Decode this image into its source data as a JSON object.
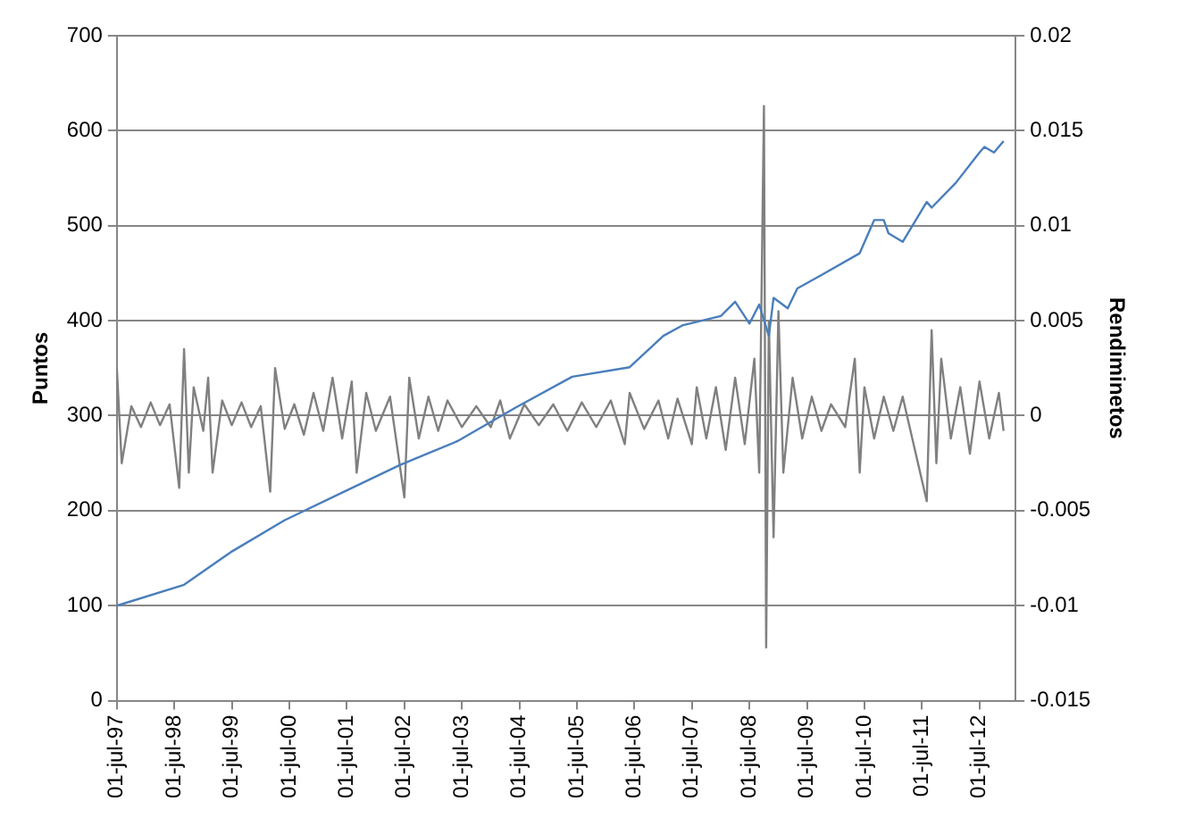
{
  "chart_data": {
    "type": "line",
    "ylabel": "Puntos",
    "y2label": "Rendiminetos",
    "grid": "y",
    "xlim": [
      "1997-07-01",
      "2013-02-15"
    ],
    "xticks": [
      {
        "value": "1997-07-01",
        "label": "01-jul-97"
      },
      {
        "value": "1998-07-01",
        "label": "01-jul-98"
      },
      {
        "value": "1999-07-01",
        "label": "01-jul-99"
      },
      {
        "value": "2000-07-01",
        "label": "01-jul-00"
      },
      {
        "value": "2001-07-01",
        "label": "01-jul-01"
      },
      {
        "value": "2002-07-01",
        "label": "01-jul-02"
      },
      {
        "value": "2003-07-01",
        "label": "01-jul-03"
      },
      {
        "value": "2004-07-01",
        "label": "01-jul-04"
      },
      {
        "value": "2005-07-01",
        "label": "01-jul-05"
      },
      {
        "value": "2006-07-01",
        "label": "01-jul-06"
      },
      {
        "value": "2007-07-01",
        "label": "01-jul-07"
      },
      {
        "value": "2008-07-01",
        "label": "01-jul-08"
      },
      {
        "value": "2009-07-01",
        "label": "01-jul-09"
      },
      {
        "value": "2010-07-01",
        "label": "01-jul-10"
      },
      {
        "value": "2011-07-01",
        "label": "01-jul-11"
      },
      {
        "value": "2012-07-01",
        "label": "01-jul-12"
      }
    ],
    "ylim": [
      0,
      700
    ],
    "yticks": [
      0,
      100,
      200,
      300,
      400,
      500,
      600,
      700
    ],
    "y2lim": [
      -0.015,
      0.02
    ],
    "y2ticks": [
      -0.015,
      -0.01,
      -0.005,
      0,
      0.005,
      0.01,
      0.015,
      0.02
    ],
    "series": [
      {
        "color": "#808080",
        "axis": "y2",
        "x": [
          "1997-07",
          "1997-08",
          "1997-10",
          "1997-12",
          "1998-02",
          "1998-04",
          "1998-06",
          "1998-08",
          "1998-09",
          "1998-10",
          "1998-11",
          "1999-01",
          "1999-02",
          "1999-03",
          "1999-05",
          "1999-07",
          "1999-09",
          "1999-11",
          "2000-01",
          "2000-03",
          "2000-04",
          "2000-06",
          "2000-08",
          "2000-10",
          "2000-12",
          "2001-02",
          "2001-04",
          "2001-06",
          "2001-08",
          "2001-09",
          "2001-11",
          "2002-01",
          "2002-04",
          "2002-07",
          "2002-08",
          "2002-10",
          "2002-12",
          "2003-02",
          "2003-04",
          "2003-07",
          "2003-10",
          "2004-01",
          "2004-03",
          "2004-05",
          "2004-08",
          "2004-11",
          "2005-02",
          "2005-05",
          "2005-08",
          "2005-11",
          "2006-02",
          "2006-05",
          "2006-06",
          "2006-09",
          "2006-12",
          "2007-02",
          "2007-04",
          "2007-07",
          "2007-08",
          "2007-10",
          "2007-12",
          "2008-02",
          "2008-04",
          "2008-06",
          "2008-08",
          "2008-09",
          "2008-10",
          "2008-10-15",
          "2008-11",
          "2008-12",
          "2009-01",
          "2009-02",
          "2009-04",
          "2009-06",
          "2009-08",
          "2009-10",
          "2009-12",
          "2010-03",
          "2010-05",
          "2010-06",
          "2010-07",
          "2010-09",
          "2010-11",
          "2011-01",
          "2011-03",
          "2011-05",
          "2011-08",
          "2011-09",
          "2011-10",
          "2011-11",
          "2012-01",
          "2012-03",
          "2012-05",
          "2012-07",
          "2012-09",
          "2012-11",
          "2012-12"
        ],
        "values": [
          0.0025,
          -0.0025,
          0.0005,
          -0.0006,
          0.0007,
          -0.0005,
          0.0006,
          -0.0038,
          0.0035,
          -0.003,
          0.0015,
          -0.0008,
          0.002,
          -0.003,
          0.0008,
          -0.0005,
          0.0007,
          -0.0006,
          0.0005,
          -0.004,
          0.0025,
          -0.0007,
          0.0006,
          -0.001,
          0.0012,
          -0.0008,
          0.002,
          -0.0012,
          0.0018,
          -0.003,
          0.0012,
          -0.0008,
          0.001,
          -0.0043,
          0.002,
          -0.0012,
          0.001,
          -0.0008,
          0.0008,
          -0.0006,
          0.0005,
          -0.0006,
          0.0008,
          -0.0012,
          0.0006,
          -0.0005,
          0.0006,
          -0.0008,
          0.0007,
          -0.0006,
          0.0008,
          -0.0015,
          0.0012,
          -0.0007,
          0.0008,
          -0.0012,
          0.0009,
          -0.0015,
          0.0015,
          -0.0012,
          0.0015,
          -0.0018,
          0.002,
          -0.0015,
          0.003,
          -0.003,
          0.0163,
          -0.0122,
          0.005,
          -0.0064,
          0.0055,
          -0.003,
          0.002,
          -0.0012,
          0.001,
          -0.0008,
          0.0006,
          -0.0006,
          0.003,
          -0.003,
          0.0015,
          -0.0012,
          0.001,
          -0.0008,
          0.001,
          -0.0012,
          -0.0045,
          0.0045,
          -0.0025,
          0.003,
          -0.0012,
          0.0015,
          -0.002,
          0.0018,
          -0.0012,
          0.0012,
          -0.0008
        ]
      },
      {
        "color": "#4a7ebb",
        "x": [
          "1997-07",
          "1998-09",
          "1999-07",
          "2000-06",
          "2001-06",
          "2002-06",
          "2003-06",
          "2004-06",
          "2005-06",
          "2006-06",
          "2007-01",
          "2007-05",
          "2008-01",
          "2008-04",
          "2008-07",
          "2008-09",
          "2008-11",
          "2008-12",
          "2009-03",
          "2009-05",
          "2009-10",
          "2010-06",
          "2010-09",
          "2010-11",
          "2010-12",
          "2011-03",
          "2011-08",
          "2011-09",
          "2012-02",
          "2012-07",
          "2012-08",
          "2012-10",
          "2012-12"
        ],
        "values": [
          100,
          122,
          157,
          190,
          219,
          248,
          273,
          308,
          341,
          351,
          384,
          395,
          405,
          420,
          397,
          417,
          384,
          424,
          413,
          434,
          448,
          471,
          506,
          506,
          492,
          483,
          525,
          519,
          545,
          577,
          583,
          577,
          589
        ]
      }
    ]
  }
}
